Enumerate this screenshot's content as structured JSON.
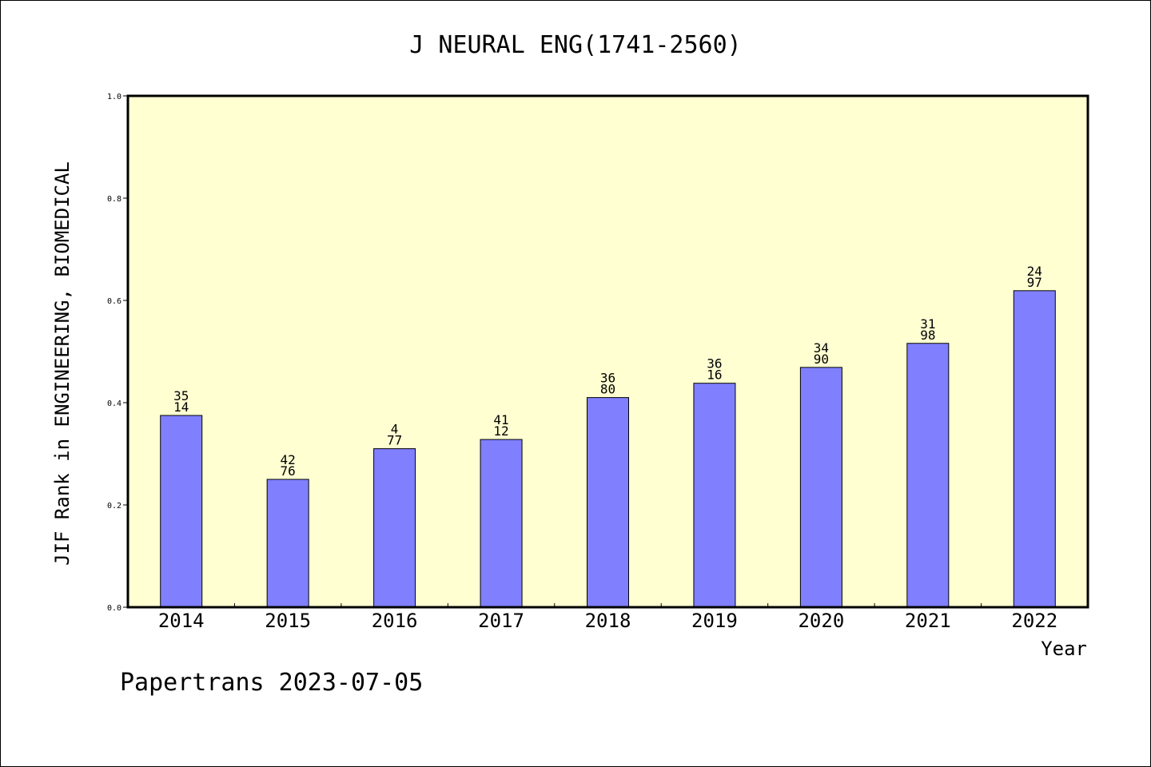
{
  "chart_data": {
    "type": "bar",
    "title": "J NEURAL ENG(1741-2560)",
    "xlabel": "Year",
    "ylabel": "JIF Rank in ENGINEERING, BIOMEDICAL",
    "ylim": [
      0.0,
      1.0
    ],
    "yticks": [
      "0.0",
      "0.2",
      "0.4",
      "0.6",
      "0.8",
      "1.0"
    ],
    "categories": [
      "2014",
      "2015",
      "2016",
      "2017",
      "2018",
      "2019",
      "2020",
      "2021",
      "2022"
    ],
    "values": [
      0.375,
      0.25,
      0.31,
      0.328,
      0.41,
      0.438,
      0.469,
      0.516,
      0.619
    ],
    "labels": [
      [
        "35",
        "14"
      ],
      [
        "42",
        "76"
      ],
      [
        "4",
        "77"
      ],
      [
        "41",
        "12"
      ],
      [
        "36",
        "80"
      ],
      [
        "36",
        "16"
      ],
      [
        "34",
        "90"
      ],
      [
        "31",
        "98"
      ],
      [
        "24",
        "97"
      ]
    ],
    "grid": false,
    "colors": {
      "plot_bg": "#ffffd2",
      "bar": "#8080ff",
      "bar_stroke": "#000000"
    }
  },
  "footer": "Papertrans 2023-07-05"
}
